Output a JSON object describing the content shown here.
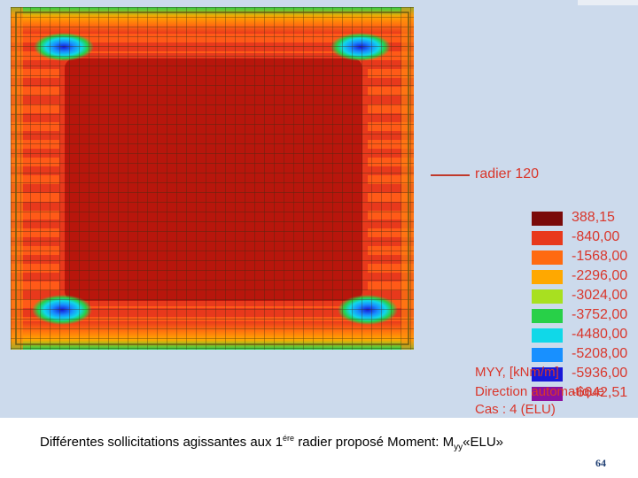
{
  "legend": {
    "line_label": "radier 120",
    "line_color": "#c0392b"
  },
  "scale": [
    {
      "value": "388,15",
      "color": "#7a0a0a"
    },
    {
      "value": "-840,00",
      "color": "#e8391c"
    },
    {
      "value": "-1568,00",
      "color": "#ff6a10"
    },
    {
      "value": "-2296,00",
      "color": "#ffa800"
    },
    {
      "value": "-3024,00",
      "color": "#a8e020"
    },
    {
      "value": "-3752,00",
      "color": "#28d048"
    },
    {
      "value": "-4480,00",
      "color": "#10d8e8"
    },
    {
      "value": "-5208,00",
      "color": "#1890ff"
    },
    {
      "value": "-5936,00",
      "color": "#1818d8"
    },
    {
      "value": "-6642,51",
      "color": "#8a10a0"
    }
  ],
  "info": {
    "line1": "MYY, [kNm/m]",
    "line2": "Direction automatique",
    "line3": "Cas : 4 (ELU)"
  },
  "caption": {
    "text": "Différentes sollicitations agissantes aux 1",
    "sup": "ére",
    "text2": " radier proposé Moment: M",
    "sub": "yy",
    "text3": "«ELU»"
  },
  "page_number": "64"
}
